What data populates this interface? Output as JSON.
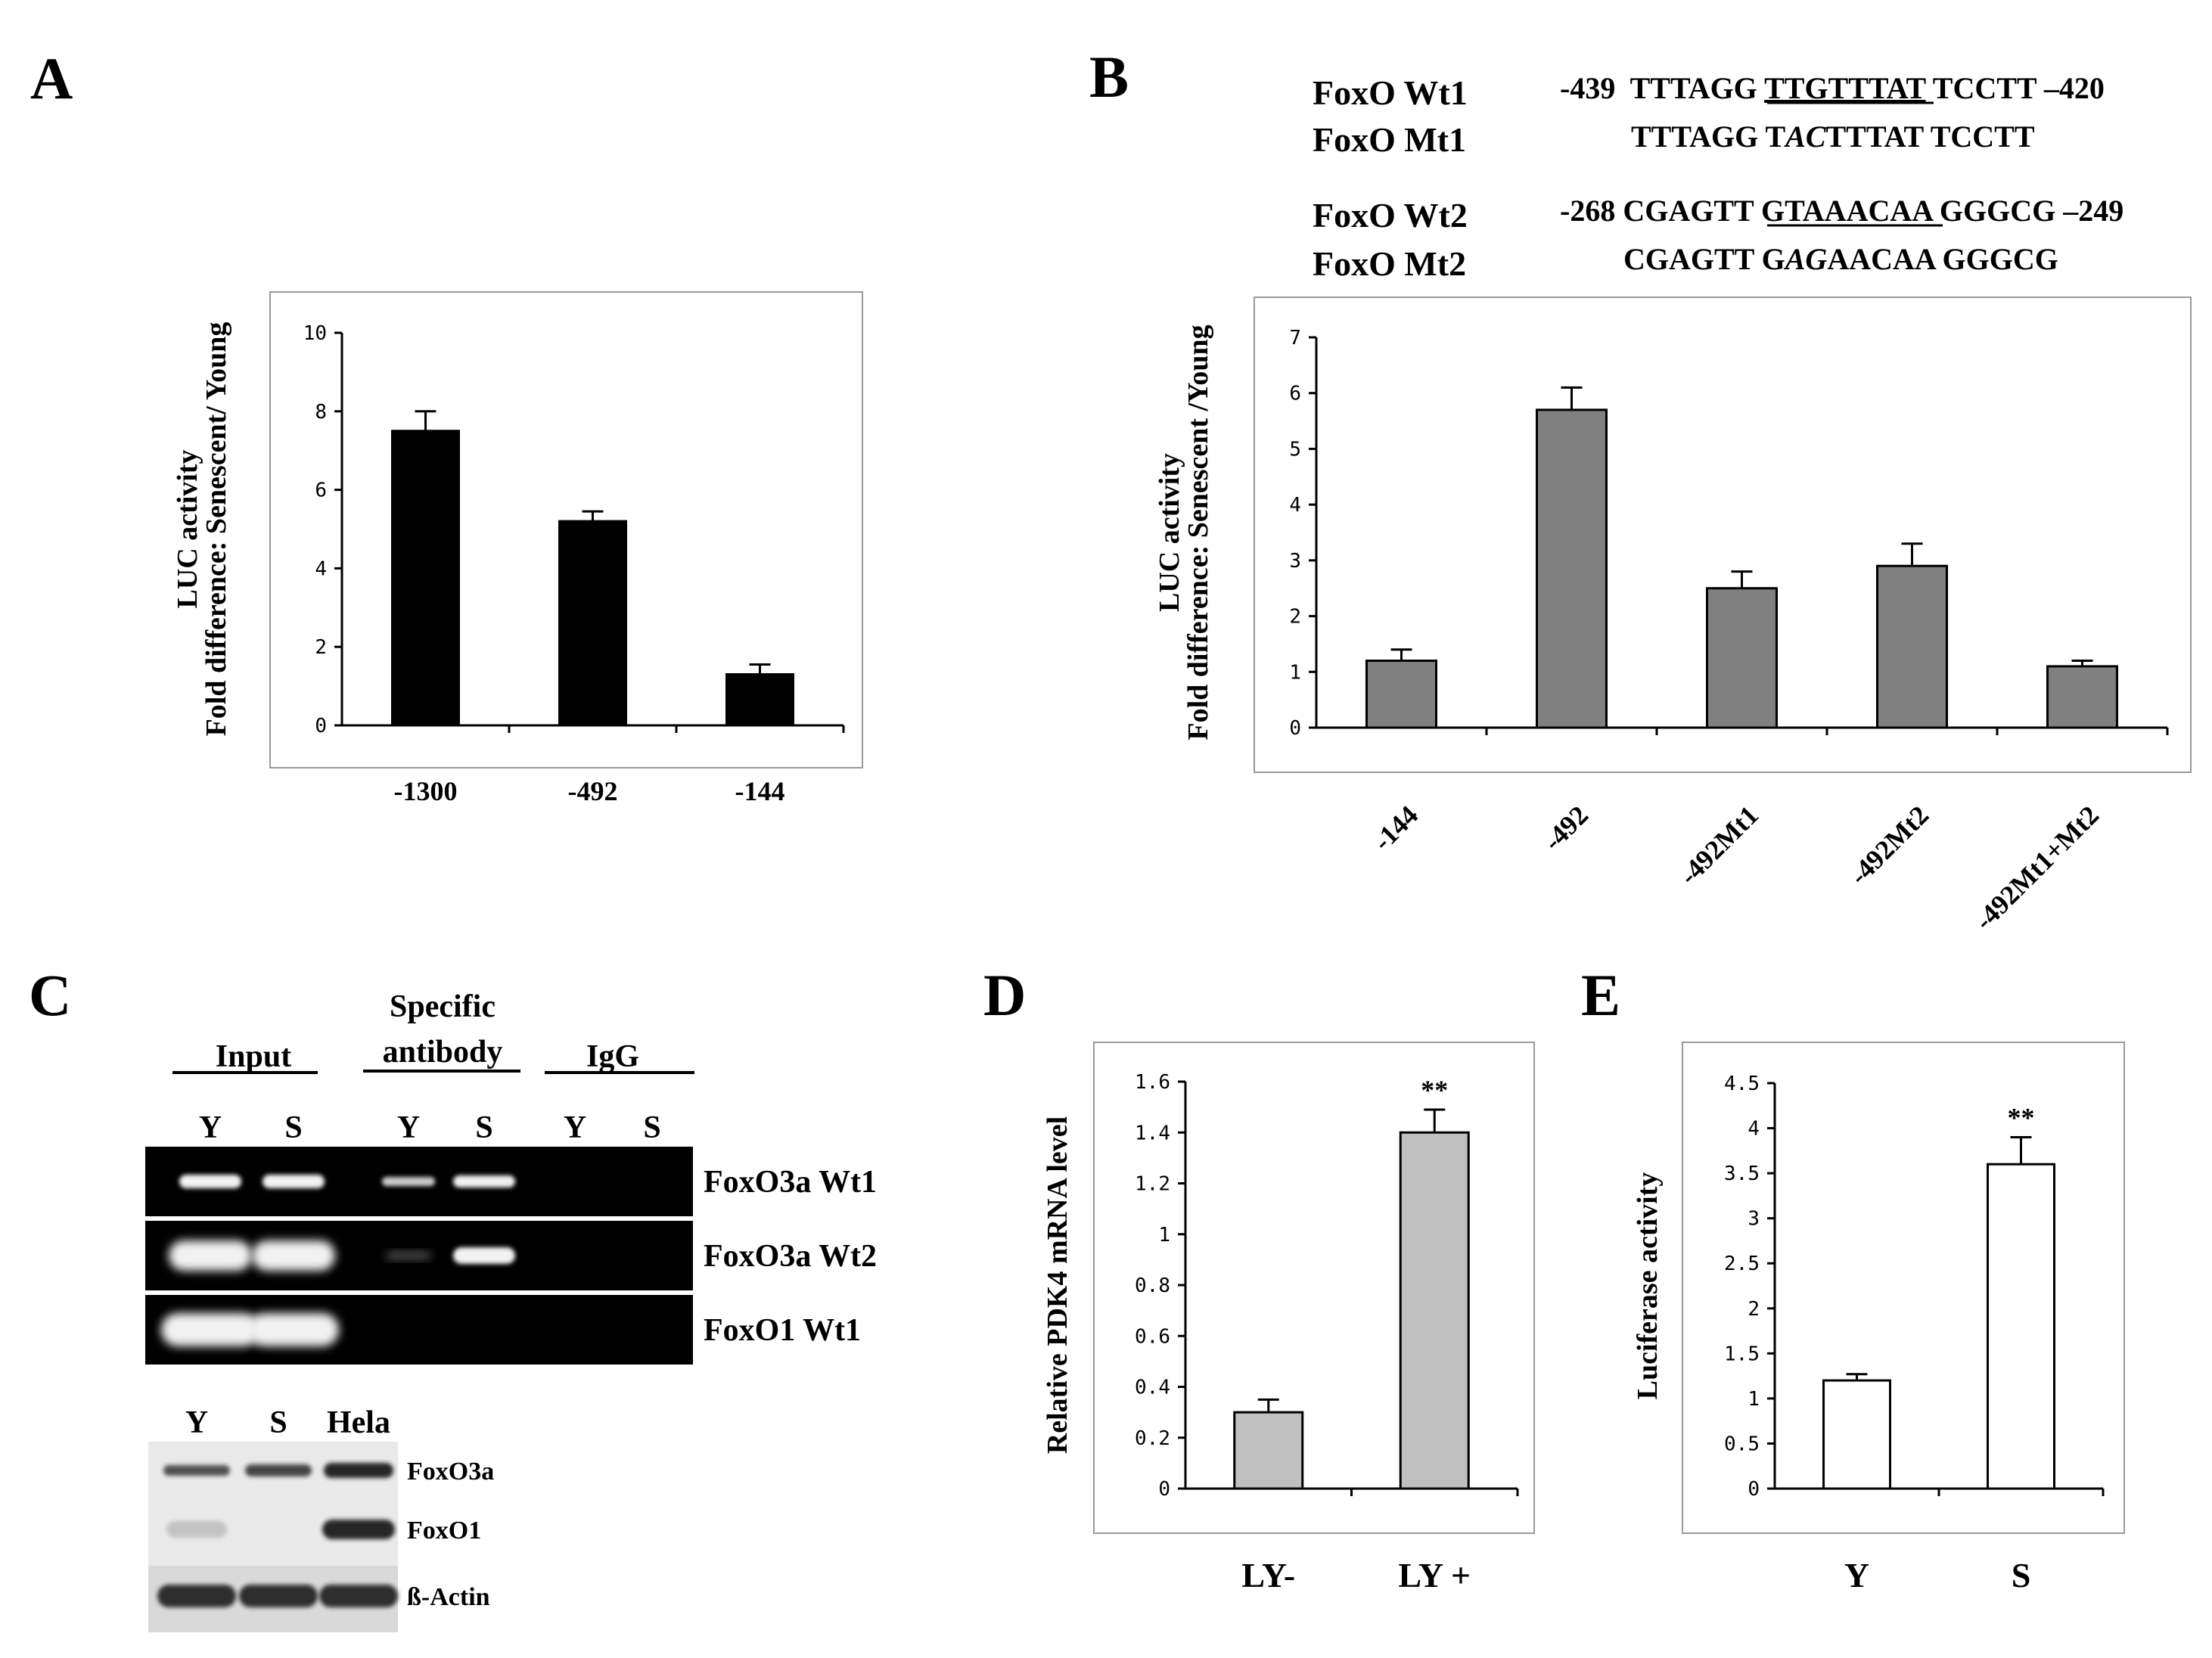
{
  "panels": {
    "A": "A",
    "B": "B",
    "C": "C",
    "D": "D",
    "E": "E"
  },
  "sequences": [
    {
      "name": "FoxO Wt1",
      "left": "-439",
      "pre": "TTTAGG ",
      "site": "TTGTTTAT",
      "post": " TCCTT",
      "right": "–420"
    },
    {
      "name": "FoxO Mt1",
      "pre": "TTTAGG T",
      "mut": "AC",
      "post": "TTTAT TCCTT"
    },
    {
      "name": "FoxO Wt2",
      "left": "-268",
      "pre": "CGAGTT ",
      "site": "GTAAACAA",
      "post": " GGGCG",
      "right": "–249"
    },
    {
      "name": "FoxO Mt2",
      "pre": "CGAGTT G",
      "mut": "AG",
      "post": "AACAA GGGCG"
    }
  ],
  "chart_data": [
    {
      "panel": "A",
      "type": "bar",
      "categories": [
        "-1300",
        "-492",
        "-144"
      ],
      "values": [
        7.5,
        5.2,
        1.3
      ],
      "errors": [
        0.5,
        0.25,
        0.25
      ],
      "ylabel": [
        "LUC activity",
        "Fold  difference: Senescent/ Young"
      ],
      "ylim": [
        0,
        10
      ],
      "yticks": [
        "0",
        "2",
        "4",
        "6",
        "8",
        "10"
      ],
      "bar_color": "#000000"
    },
    {
      "panel": "B",
      "type": "bar",
      "categories": [
        "-144",
        "-492",
        "-492Mt1",
        "-492Mt2",
        "-492Mt1+Mt2"
      ],
      "values": [
        1.2,
        5.7,
        2.5,
        2.9,
        1.1
      ],
      "errors": [
        0.2,
        0.4,
        0.3,
        0.4,
        0.1
      ],
      "ylabel": [
        "LUC activity",
        "Fold  difference: Senescent /Young"
      ],
      "ylim": [
        0,
        7
      ],
      "yticks": [
        "0",
        "1",
        "2",
        "3",
        "4",
        "5",
        "6",
        "7"
      ],
      "bar_color": "#808080"
    },
    {
      "panel": "D",
      "type": "bar",
      "categories": [
        "LY-",
        "LY +"
      ],
      "values": [
        0.3,
        1.4
      ],
      "errors": [
        0.05,
        0.09
      ],
      "annotations": [
        "",
        "**"
      ],
      "ylabel": [
        "Relative PDK4 mRNA level"
      ],
      "ylim": [
        0,
        1.6
      ],
      "yticks": [
        "0",
        "0.2",
        "0.4",
        "0.6",
        "0.8",
        "1",
        "1.2",
        "1.4",
        "1.6"
      ],
      "bar_color": "#c0c0c0"
    },
    {
      "panel": "E",
      "type": "bar",
      "categories": [
        "Y",
        "S"
      ],
      "values": [
        1.2,
        3.6
      ],
      "errors": [
        0.07,
        0.3
      ],
      "annotations": [
        "",
        "**"
      ],
      "ylabel": [
        "Luciferase activity"
      ],
      "ylim": [
        0,
        4.5
      ],
      "yticks": [
        "0",
        "0.5",
        "1",
        "1.5",
        "2",
        "2.5",
        "3",
        "3.5",
        "4",
        "4.5"
      ],
      "bar_color": "#ffffff"
    }
  ],
  "gel": {
    "groups": [
      "Input",
      "Specific",
      "antibody",
      "IgG"
    ],
    "lanes": [
      "Y",
      "S",
      "Y",
      "S",
      "Y",
      "S"
    ],
    "rows": [
      "FoxO3a Wt1",
      "FoxO3a Wt2",
      "FoxO1 Wt1"
    ]
  },
  "western": {
    "lanes": [
      "Y",
      "S",
      "Hela"
    ],
    "rows": [
      "FoxO3a",
      "FoxO1",
      "ß-Actin"
    ]
  }
}
